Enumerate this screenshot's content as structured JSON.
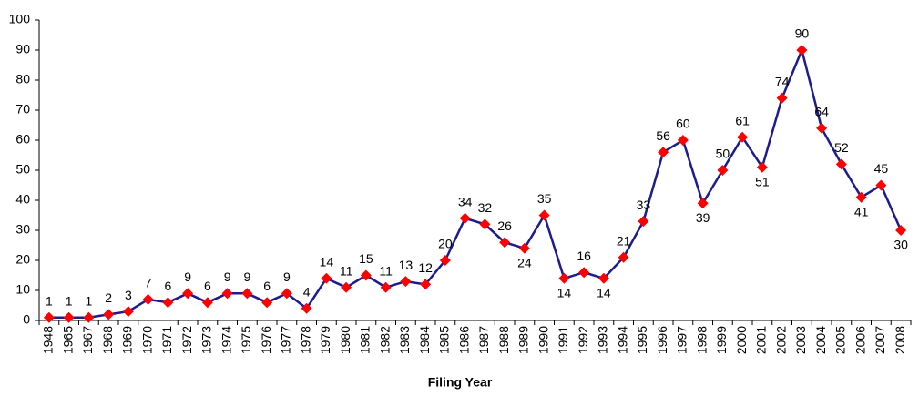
{
  "chart_data": {
    "type": "line",
    "xlabel": "Filing Year",
    "categories": [
      "1948",
      "1965",
      "1967",
      "1968",
      "1969",
      "1970",
      "1971",
      "1972",
      "1973",
      "1974",
      "1975",
      "1976",
      "1977",
      "1978",
      "1979",
      "1980",
      "1981",
      "1982",
      "1983",
      "1984",
      "1985",
      "1986",
      "1987",
      "1988",
      "1989",
      "1990",
      "1991",
      "1992",
      "1993",
      "1994",
      "1995",
      "1996",
      "1997",
      "1998",
      "1999",
      "2000",
      "2001",
      "2002",
      "2003",
      "2004",
      "2005",
      "2006",
      "2007",
      "2008"
    ],
    "values": [
      1,
      1,
      1,
      2,
      3,
      7,
      6,
      9,
      6,
      9,
      9,
      6,
      9,
      4,
      14,
      11,
      15,
      11,
      13,
      12,
      20,
      34,
      32,
      26,
      24,
      35,
      14,
      16,
      14,
      21,
      33,
      56,
      60,
      39,
      50,
      61,
      51,
      74,
      90,
      64,
      52,
      41,
      45,
      30
    ],
    "color": "#1c1c8c",
    "marker_color": "#ff0000",
    "ylim": [
      0,
      100
    ],
    "yticks": [
      0,
      10,
      20,
      30,
      40,
      50,
      60,
      70,
      80,
      90,
      100
    ],
    "grid": false
  }
}
